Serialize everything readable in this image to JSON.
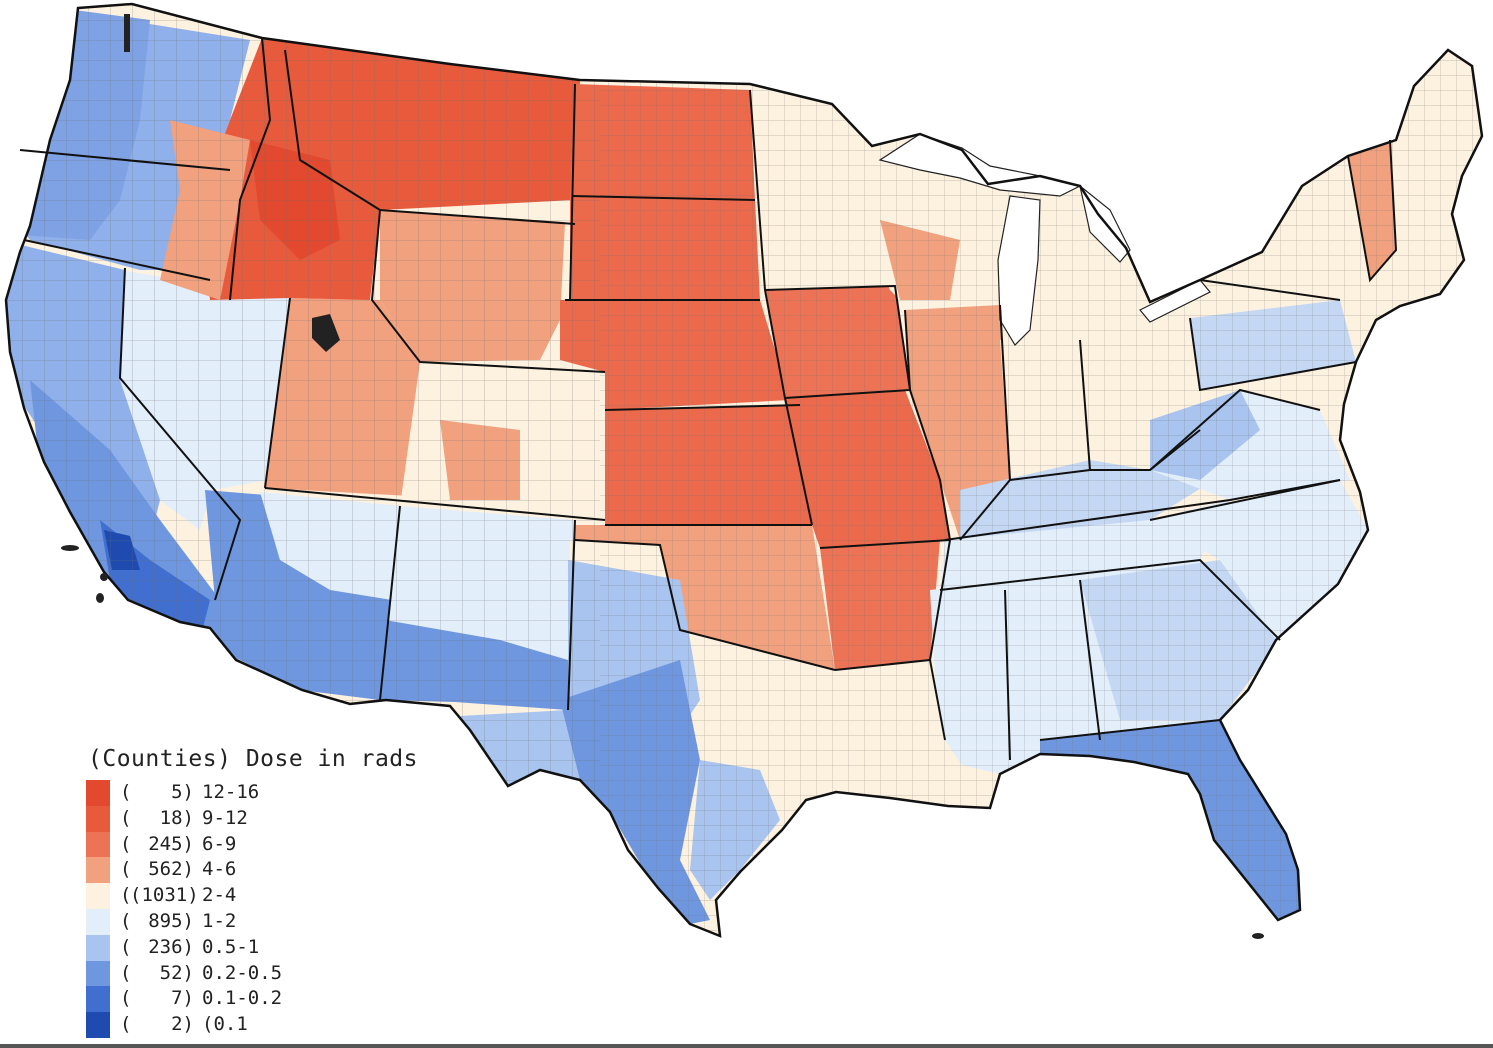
{
  "legend": {
    "title": "(Counties) Dose in rads",
    "items": [
      {
        "paren": "(",
        "count": "5)",
        "range": "12-16",
        "color": "#e2492f"
      },
      {
        "paren": "(",
        "count": "18)",
        "range": "9-12",
        "color": "#e85a3c"
      },
      {
        "paren": "(",
        "count": "245)",
        "range": "6-9",
        "color": "#ec7356"
      },
      {
        "paren": "(",
        "count": "562)",
        "range": "4-6",
        "color": "#f2a17f"
      },
      {
        "paren": "(",
        "count": "(1031)",
        "range": "2-4",
        "color": "#fdf1e0"
      },
      {
        "paren": "(",
        "count": "895)",
        "range": "1-2",
        "color": "#e3eefb"
      },
      {
        "paren": "(",
        "count": "236)",
        "range": "0.5-1",
        "color": "#a8c4ef"
      },
      {
        "paren": "(",
        "count": "52)",
        "range": "0.2-0.5",
        "color": "#6f97e0"
      },
      {
        "paren": "(",
        "count": "7)",
        "range": "0.1-0.2",
        "color": "#416fcf"
      },
      {
        "paren": "(",
        "count": "2)",
        "range": "(0.1",
        "color": "#1f4bb0"
      }
    ]
  },
  "colors": {
    "red_dark": "#e2492f",
    "red": "#ec6a4c",
    "salmon": "#f2a17f",
    "cream": "#fdf1e0",
    "pale_blue": "#e3eefb",
    "light_blue": "#a8c4ef",
    "blue": "#6f97e0",
    "mid_blue": "#416fcf",
    "dark_blue": "#1f4bb0",
    "water": "#ffffff",
    "border": "#222222"
  }
}
